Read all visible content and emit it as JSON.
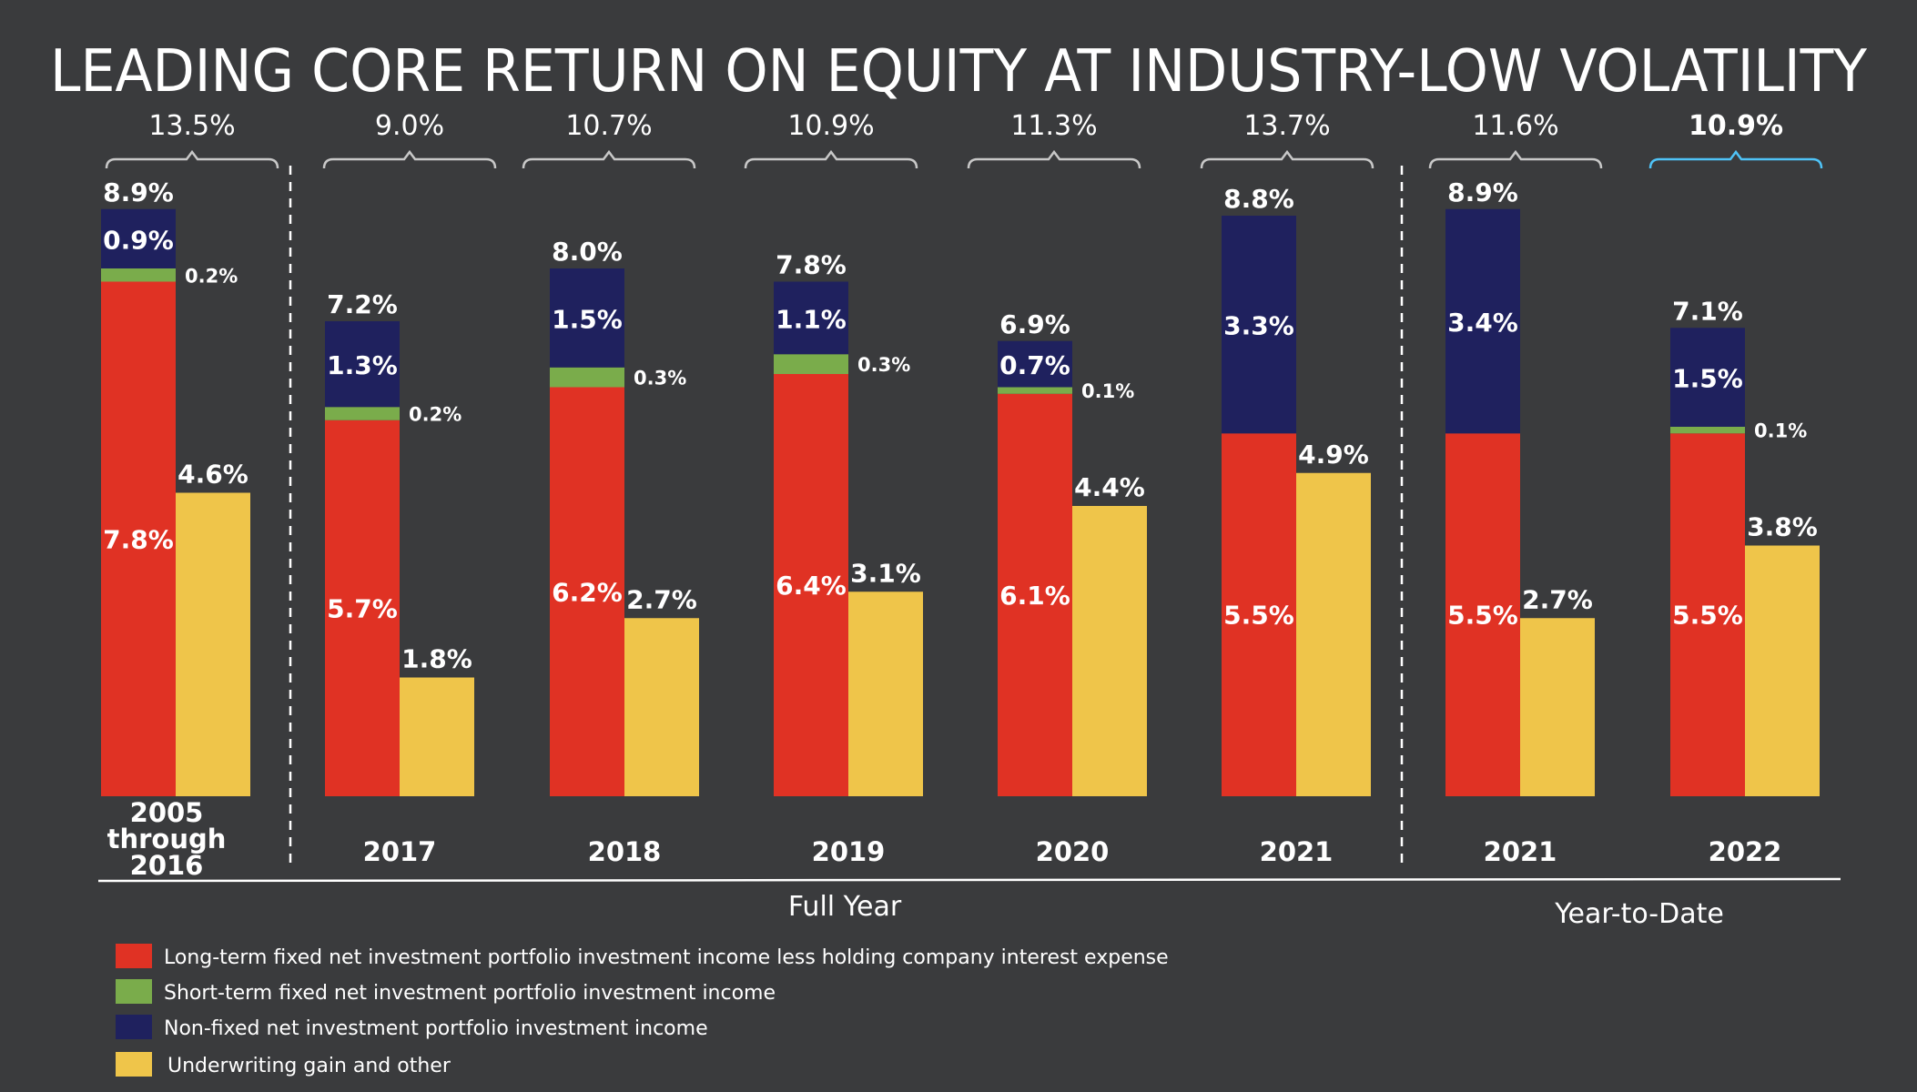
{
  "chart_data": {
    "type": "bar",
    "title": "LEADING CORE RETURN ON EQUITY AT INDUSTRY-LOW VOLATILITY",
    "ylim": [
      0,
      9.5
    ],
    "grid": false,
    "legend_position": "bottom-left",
    "categories": [
      "2005 through 2016",
      "2017",
      "2018",
      "2019",
      "2020",
      "2021",
      "2021",
      "2022"
    ],
    "category_lines": [
      [
        "2005",
        "through",
        "2016"
      ],
      [
        "2017"
      ],
      [
        "2018"
      ],
      [
        "2019"
      ],
      [
        "2020"
      ],
      [
        "2021"
      ],
      [
        "2021"
      ],
      [
        "2022"
      ]
    ],
    "totals": [
      "13.5%",
      "9.0%",
      "10.7%",
      "10.9%",
      "11.3%",
      "13.7%",
      "11.6%",
      "10.9%"
    ],
    "highlight_total_index": 7,
    "highlight_color": "#4fc3f7",
    "investment_bar_totals": [
      8.9,
      7.2,
      8.0,
      7.8,
      6.9,
      8.8,
      8.9,
      7.1
    ],
    "series": [
      {
        "name": "Long-term fixed net investment portfolio investment income less holding company interest expense",
        "color": "#e03224",
        "values": [
          7.8,
          5.7,
          6.2,
          6.4,
          6.1,
          5.5,
          5.5,
          5.5
        ]
      },
      {
        "name": "Short-term fixed net investment portfolio investment income",
        "color": "#7aac4b",
        "values": [
          0.2,
          0.2,
          0.3,
          0.3,
          0.1,
          null,
          null,
          0.1
        ]
      },
      {
        "name": "Non-fixed net investment portfolio investment income",
        "color": "#1f215e",
        "values": [
          0.9,
          1.3,
          1.5,
          1.1,
          0.7,
          3.3,
          3.4,
          1.5
        ]
      },
      {
        "name": "Underwriting gain and other",
        "color": "#efc54a",
        "values": [
          4.6,
          1.8,
          2.7,
          3.1,
          4.4,
          4.9,
          2.7,
          3.8
        ]
      }
    ],
    "groups": [
      {
        "label": "Full Year",
        "categories": [
          1,
          2,
          3,
          4,
          5
        ]
      },
      {
        "label": "Year-to-Date",
        "categories": [
          6,
          7
        ]
      }
    ]
  }
}
